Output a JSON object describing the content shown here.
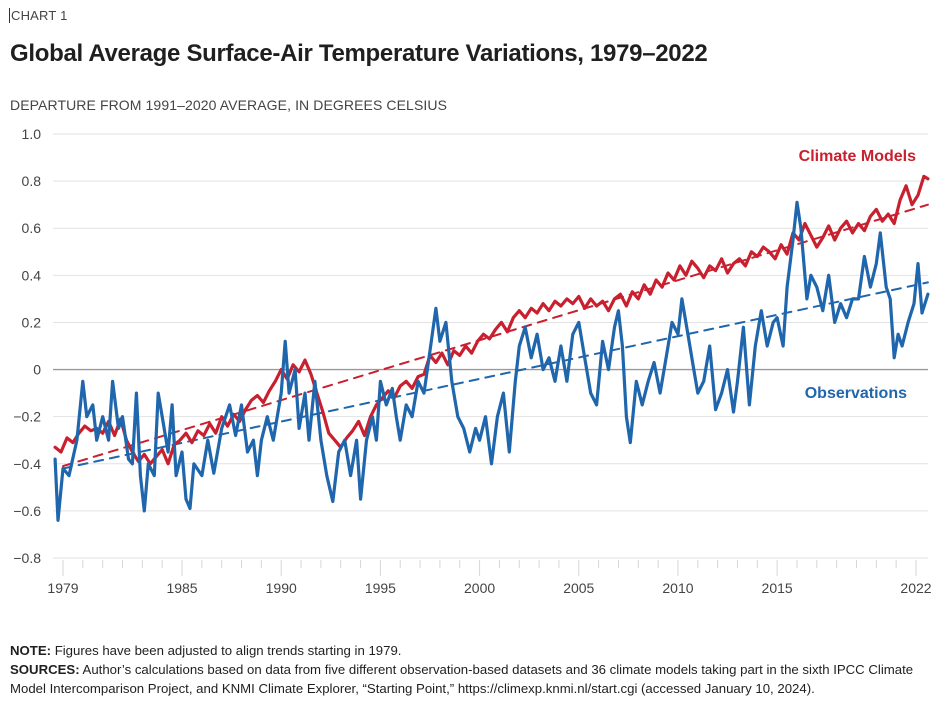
{
  "header": {
    "chart_label": "CHART 1",
    "title": "Global Average Surface-Air Temperature Variations, 1979–2022",
    "subtitle": "DEPARTURE FROM 1991–2020 AVERAGE, IN DEGREES CELSIUS"
  },
  "footer": {
    "note_label": "NOTE:",
    "note_text": " Figures have been adjusted to align trends starting in 1979.",
    "sources_label": "SOURCES:",
    "sources_text": " Author’s calculations based on data from five different observation-based datasets and 36 climate models taking part in the sixth IPCC Climate Model Intercomparison Project, and KNMI Climate Explorer, “Starting Point,” https://climexp.knmi.nl/start.cgi (accessed January 10, 2024)."
  },
  "colors": {
    "models": "#c8202f",
    "observations": "#2066ac",
    "grid": "#e2e2e2",
    "zero_line": "#999999",
    "tick_text": "#444444"
  },
  "chart_data": {
    "type": "line",
    "title": "Global Average Surface-Air Temperature Variations, 1979–2022",
    "xlabel": "",
    "ylabel": "DEPARTURE FROM 1991–2020 AVERAGE, IN DEGREES CELSIUS",
    "xlim": [
      1978.5,
      2022.6
    ],
    "ylim": [
      -0.8,
      1.0
    ],
    "grid": true,
    "yticks": [
      1.0,
      0.8,
      0.6,
      0.4,
      0.2,
      0,
      -0.2,
      -0.4,
      -0.6,
      -0.8
    ],
    "ytick_labels": [
      "1.0",
      "0.8",
      "0.6",
      "0.4",
      "0.2",
      "0",
      "−0.2",
      "−0.4",
      "−0.6",
      "−0.8"
    ],
    "xticks_major": [
      1979,
      1985,
      1990,
      1995,
      2000,
      2005,
      2010,
      2015,
      2022
    ],
    "xtick_labels": [
      "1979",
      "1985",
      "1990",
      "1995",
      "2000",
      "2005",
      "2010",
      "2015",
      "2022"
    ],
    "xticks_minor_every_year": [
      1979,
      2022
    ],
    "legend": "inline labels (Climate Models top-right above red line; Observations right, below red line)",
    "series": [
      {
        "name": "Climate Models",
        "label": "Climate Models",
        "style": "solid",
        "x": [
          1978.6,
          1978.9,
          1979.2,
          1979.5,
          1979.8,
          1980.1,
          1980.4,
          1980.7,
          1981.0,
          1981.3,
          1981.6,
          1981.9,
          1982.2,
          1982.5,
          1982.8,
          1983.1,
          1983.4,
          1983.7,
          1984.0,
          1984.3,
          1984.6,
          1984.9,
          1985.2,
          1985.5,
          1985.8,
          1986.1,
          1986.4,
          1986.7,
          1987.0,
          1987.3,
          1987.6,
          1987.9,
          1988.2,
          1988.5,
          1988.8,
          1989.1,
          1989.4,
          1989.7,
          1990.0,
          1990.3,
          1990.6,
          1990.9,
          1991.2,
          1991.5,
          1991.8,
          1992.1,
          1992.4,
          1992.7,
          1993.0,
          1993.3,
          1993.6,
          1993.9,
          1994.2,
          1994.5,
          1994.8,
          1995.1,
          1995.4,
          1995.7,
          1996.0,
          1996.3,
          1996.6,
          1996.9,
          1997.2,
          1997.5,
          1997.8,
          1998.1,
          1998.4,
          1998.7,
          1999.0,
          1999.3,
          1999.6,
          1999.9,
          2000.2,
          2000.5,
          2000.8,
          2001.1,
          2001.4,
          2001.7,
          2002.0,
          2002.3,
          2002.6,
          2002.9,
          2003.2,
          2003.5,
          2003.8,
          2004.1,
          2004.4,
          2004.7,
          2005.0,
          2005.3,
          2005.6,
          2005.9,
          2006.2,
          2006.5,
          2006.8,
          2007.1,
          2007.4,
          2007.7,
          2008.0,
          2008.3,
          2008.6,
          2008.9,
          2009.2,
          2009.5,
          2009.8,
          2010.1,
          2010.4,
          2010.7,
          2011.0,
          2011.3,
          2011.6,
          2011.9,
          2012.2,
          2012.5,
          2012.8,
          2013.1,
          2013.4,
          2013.7,
          2014.0,
          2014.3,
          2014.6,
          2014.9,
          2015.2,
          2015.5,
          2015.8,
          2016.1,
          2016.4,
          2016.7,
          2017.0,
          2017.3,
          2017.6,
          2017.9,
          2018.2,
          2018.5,
          2018.8,
          2019.1,
          2019.4,
          2019.7,
          2020.0,
          2020.3,
          2020.6,
          2020.9,
          2021.2,
          2021.5,
          2021.8,
          2022.1,
          2022.4,
          2022.6
        ],
        "y": [
          -0.33,
          -0.35,
          -0.29,
          -0.31,
          -0.27,
          -0.24,
          -0.26,
          -0.25,
          -0.27,
          -0.22,
          -0.28,
          -0.21,
          -0.3,
          -0.35,
          -0.39,
          -0.36,
          -0.4,
          -0.37,
          -0.34,
          -0.4,
          -0.32,
          -0.3,
          -0.27,
          -0.31,
          -0.26,
          -0.28,
          -0.23,
          -0.27,
          -0.2,
          -0.24,
          -0.19,
          -0.22,
          -0.17,
          -0.13,
          -0.11,
          -0.14,
          -0.09,
          -0.05,
          0.0,
          -0.04,
          0.02,
          -0.01,
          0.04,
          -0.02,
          -0.1,
          -0.18,
          -0.27,
          -0.3,
          -0.33,
          -0.29,
          -0.26,
          -0.22,
          -0.28,
          -0.2,
          -0.15,
          -0.12,
          -0.09,
          -0.12,
          -0.07,
          -0.05,
          -0.08,
          -0.03,
          -0.02,
          0.06,
          0.03,
          0.07,
          0.02,
          0.08,
          0.06,
          0.1,
          0.07,
          0.12,
          0.15,
          0.13,
          0.17,
          0.2,
          0.16,
          0.22,
          0.25,
          0.22,
          0.26,
          0.24,
          0.28,
          0.25,
          0.29,
          0.27,
          0.3,
          0.28,
          0.31,
          0.26,
          0.3,
          0.27,
          0.29,
          0.25,
          0.3,
          0.32,
          0.27,
          0.33,
          0.3,
          0.36,
          0.32,
          0.38,
          0.35,
          0.41,
          0.38,
          0.44,
          0.4,
          0.46,
          0.43,
          0.39,
          0.44,
          0.42,
          0.47,
          0.41,
          0.45,
          0.47,
          0.44,
          0.5,
          0.48,
          0.52,
          0.5,
          0.47,
          0.53,
          0.49,
          0.58,
          0.55,
          0.62,
          0.57,
          0.52,
          0.56,
          0.61,
          0.55,
          0.6,
          0.63,
          0.58,
          0.62,
          0.59,
          0.65,
          0.68,
          0.63,
          0.66,
          0.62,
          0.72,
          0.78,
          0.7,
          0.74,
          0.82,
          0.81
        ]
      },
      {
        "name": "Observations",
        "label": "Observations",
        "style": "solid",
        "x": [
          1978.6,
          1978.75,
          1979.0,
          1979.3,
          1979.7,
          1980.0,
          1980.2,
          1980.5,
          1980.7,
          1981.0,
          1981.3,
          1981.5,
          1981.8,
          1982.0,
          1982.3,
          1982.5,
          1982.7,
          1982.9,
          1983.1,
          1983.3,
          1983.6,
          1983.8,
          1984.0,
          1984.3,
          1984.5,
          1984.7,
          1985.0,
          1985.2,
          1985.4,
          1985.6,
          1986.0,
          1986.3,
          1986.6,
          1987.0,
          1987.4,
          1987.7,
          1988.0,
          1988.3,
          1988.6,
          1988.8,
          1989.0,
          1989.3,
          1989.6,
          1990.0,
          1990.2,
          1990.4,
          1990.7,
          1990.9,
          1991.2,
          1991.4,
          1991.7,
          1992.0,
          1992.3,
          1992.6,
          1992.9,
          1993.2,
          1993.5,
          1993.8,
          1994.0,
          1994.3,
          1994.6,
          1994.8,
          1995.0,
          1995.3,
          1995.6,
          1995.8,
          1996.0,
          1996.3,
          1996.6,
          1996.9,
          1997.2,
          1997.5,
          1997.8,
          1998.0,
          1998.3,
          1998.6,
          1998.9,
          1999.2,
          1999.5,
          1999.8,
          2000.0,
          2000.3,
          2000.6,
          2000.9,
          2001.2,
          2001.5,
          2001.8,
          2002.0,
          2002.3,
          2002.6,
          2002.9,
          2003.2,
          2003.5,
          2003.8,
          2004.1,
          2004.4,
          2004.7,
          2005.0,
          2005.3,
          2005.6,
          2005.9,
          2006.2,
          2006.5,
          2006.8,
          2007.0,
          2007.2,
          2007.4,
          2007.6,
          2007.9,
          2008.2,
          2008.5,
          2008.8,
          2009.1,
          2009.4,
          2009.7,
          2010.0,
          2010.2,
          2010.5,
          2010.8,
          2011.0,
          2011.3,
          2011.6,
          2011.9,
          2012.2,
          2012.5,
          2012.8,
          2013.0,
          2013.3,
          2013.6,
          2013.9,
          2014.2,
          2014.5,
          2014.8,
          2015.0,
          2015.3,
          2015.5,
          2015.8,
          2016.0,
          2016.2,
          2016.5,
          2016.7,
          2017.0,
          2017.3,
          2017.6,
          2017.9,
          2018.2,
          2018.5,
          2018.8,
          2019.1,
          2019.4,
          2019.7,
          2020.0,
          2020.2,
          2020.5,
          2020.7,
          2020.9,
          2021.1,
          2021.3,
          2021.6,
          2021.9,
          2022.1,
          2022.3,
          2022.6
        ],
        "y": [
          -0.38,
          -0.64,
          -0.42,
          -0.45,
          -0.3,
          -0.05,
          -0.2,
          -0.15,
          -0.3,
          -0.2,
          -0.3,
          -0.05,
          -0.25,
          -0.2,
          -0.38,
          -0.4,
          -0.1,
          -0.45,
          -0.6,
          -0.4,
          -0.45,
          -0.1,
          -0.2,
          -0.35,
          -0.15,
          -0.45,
          -0.35,
          -0.55,
          -0.59,
          -0.4,
          -0.45,
          -0.3,
          -0.44,
          -0.25,
          -0.15,
          -0.28,
          -0.15,
          -0.35,
          -0.3,
          -0.45,
          -0.3,
          -0.2,
          -0.3,
          -0.1,
          0.12,
          -0.1,
          0.0,
          -0.25,
          -0.1,
          -0.3,
          -0.05,
          -0.3,
          -0.45,
          -0.56,
          -0.35,
          -0.3,
          -0.45,
          -0.3,
          -0.55,
          -0.3,
          -0.2,
          -0.3,
          -0.05,
          -0.15,
          -0.08,
          -0.2,
          -0.3,
          -0.15,
          -0.2,
          -0.05,
          -0.1,
          0.08,
          0.26,
          0.12,
          0.2,
          -0.05,
          -0.2,
          -0.25,
          -0.35,
          -0.25,
          -0.3,
          -0.2,
          -0.4,
          -0.2,
          -0.1,
          -0.35,
          -0.05,
          0.1,
          0.18,
          0.05,
          0.15,
          0.0,
          0.05,
          -0.05,
          0.1,
          -0.05,
          0.15,
          0.2,
          0.05,
          -0.1,
          -0.15,
          0.12,
          0.0,
          0.18,
          0.25,
          0.1,
          -0.2,
          -0.31,
          -0.05,
          -0.15,
          -0.05,
          0.03,
          -0.1,
          0.05,
          0.2,
          0.15,
          0.3,
          0.15,
          0.0,
          -0.1,
          -0.05,
          0.1,
          -0.17,
          -0.1,
          0.0,
          -0.18,
          -0.05,
          0.18,
          -0.15,
          0.1,
          0.25,
          0.1,
          0.2,
          0.22,
          0.1,
          0.35,
          0.55,
          0.71,
          0.6,
          0.3,
          0.4,
          0.35,
          0.25,
          0.4,
          0.2,
          0.28,
          0.22,
          0.3,
          0.3,
          0.48,
          0.35,
          0.45,
          0.58,
          0.35,
          0.3,
          0.05,
          0.15,
          0.1,
          0.2,
          0.28,
          0.45,
          0.24,
          0.32
        ]
      },
      {
        "name": "Climate Models trend",
        "style": "dashed",
        "x": [
          1979,
          2022.6
        ],
        "y": [
          -0.41,
          0.7
        ]
      },
      {
        "name": "Observations trend",
        "style": "dashed",
        "x": [
          1979,
          2022.6
        ],
        "y": [
          -0.42,
          0.37
        ]
      }
    ]
  }
}
